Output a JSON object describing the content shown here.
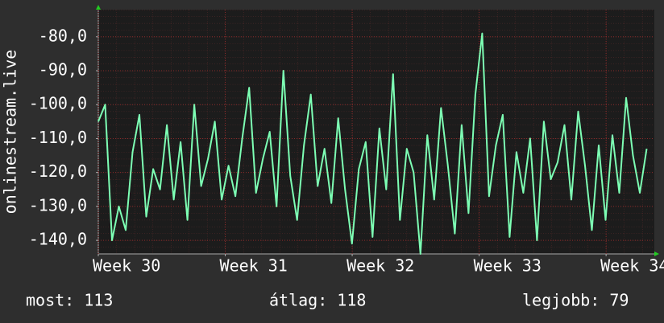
{
  "chart_data": {
    "type": "line",
    "y_label": "onlinestream.live",
    "x": [
      30.0,
      30.054,
      30.108,
      30.162,
      30.216,
      30.27,
      30.324,
      30.378,
      30.432,
      30.486,
      30.54,
      30.594,
      30.648,
      30.702,
      30.756,
      30.81,
      30.864,
      30.918,
      30.972,
      31.026,
      31.08,
      31.134,
      31.188,
      31.242,
      31.296,
      31.35,
      31.404,
      31.458,
      31.512,
      31.566,
      31.62,
      31.674,
      31.728,
      31.782,
      31.836,
      31.89,
      31.944,
      31.998,
      32.052,
      32.106,
      32.16,
      32.214,
      32.268,
      32.322,
      32.376,
      32.43,
      32.484,
      32.538,
      32.592,
      32.646,
      32.7,
      32.754,
      32.808,
      32.862,
      32.916,
      32.97,
      33.024,
      33.078,
      33.132,
      33.186,
      33.24,
      33.294,
      33.348,
      33.402,
      33.456,
      33.51,
      33.564,
      33.618,
      33.672,
      33.726,
      33.78,
      33.834,
      33.888,
      33.942,
      33.996,
      34.05,
      34.104,
      34.158,
      34.212,
      34.266,
      34.32
    ],
    "values": [
      -105,
      -100,
      -140,
      -130,
      -137,
      -114,
      -103,
      -133,
      -119,
      -125,
      -106,
      -128,
      -111,
      -134,
      -100,
      -124,
      -116,
      -105,
      -128,
      -118,
      -127,
      -110,
      -95,
      -126,
      -116,
      -108,
      -130,
      -90,
      -121,
      -134,
      -112,
      -97,
      -124,
      -113,
      -129,
      -104,
      -125,
      -141,
      -119,
      -111,
      -139,
      -107,
      -125,
      -91,
      -134,
      -113,
      -120,
      -144,
      -109,
      -128,
      -101,
      -118,
      -138,
      -106,
      -132,
      -97,
      -79,
      -127,
      -112,
      -103,
      -139,
      -114,
      -126,
      -110,
      -140,
      -105,
      -122,
      -117,
      -106,
      -128,
      -102,
      -118,
      -137,
      -112,
      -134,
      -109,
      -126,
      -98,
      -115,
      -126,
      -113
    ],
    "color": "#7dffb4",
    "xlim": [
      30,
      34.38
    ],
    "xticks": [
      {
        "value": 30,
        "label": "Week 30"
      },
      {
        "value": 31,
        "label": "Week 31"
      },
      {
        "value": 32,
        "label": "Week 32"
      },
      {
        "value": 33,
        "label": "Week 33"
      },
      {
        "value": 34,
        "label": "Week 34"
      }
    ],
    "ylim": [
      -144,
      -72
    ],
    "yticks": [
      {
        "value": -80,
        "label": "-80,0"
      },
      {
        "value": -90,
        "label": "-90,0"
      },
      {
        "value": -100,
        "label": "-100,0"
      },
      {
        "value": -110,
        "label": "-110,0"
      },
      {
        "value": -120,
        "label": "-120,0"
      },
      {
        "value": -130,
        "label": "-130,0"
      },
      {
        "value": -140,
        "label": "-140,0"
      }
    ],
    "grid": true,
    "stats": [
      "most: 113",
      "átlag: 118",
      "legjobb: 79"
    ]
  }
}
